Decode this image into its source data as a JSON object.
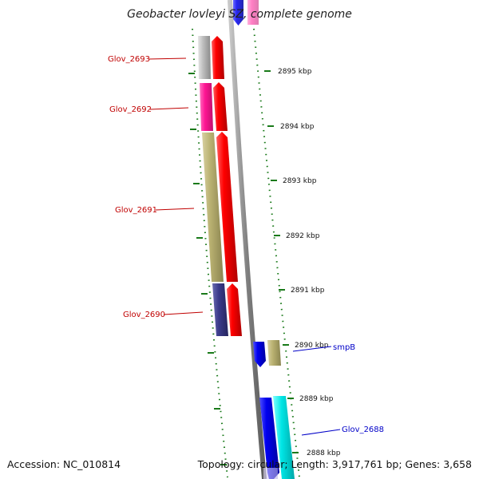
{
  "title": "Geobacter lovleyi SZ, complete genome",
  "footer": {
    "accession": "Accession: NC_010814",
    "topology": "Topology: circular; Length: 3,917,761 bp; Genes: 3,658"
  },
  "ticks": [
    {
      "label": "2895 kbp"
    },
    {
      "label": "2894 kbp"
    },
    {
      "label": "2893 kbp"
    },
    {
      "label": "2892 kbp"
    },
    {
      "label": "2891 kbp"
    },
    {
      "label": "2890 kbp"
    },
    {
      "label": "2889 kbp"
    },
    {
      "label": "2888 kbp"
    }
  ],
  "genes": [
    {
      "name": "Glov_2693",
      "label_color": "red"
    },
    {
      "name": "Glov_2692",
      "label_color": "red"
    },
    {
      "name": "Glov_2691",
      "label_color": "red"
    },
    {
      "name": "Glov_2690",
      "label_color": "red"
    },
    {
      "name": "smpB",
      "label_color": "blue"
    },
    {
      "name": "Glov_2688",
      "label_color": "blue"
    }
  ],
  "colors": {
    "backbone": "#808080",
    "tick_dots": "#1a7a1a",
    "gene_red": "#ff0000",
    "gene_blue": "#0000ee",
    "gene_cyan": "#00e5e5",
    "gene_pink": "#ff1493",
    "gene_gray": "#bdbdbd",
    "gene_khaki": "#b8b070",
    "gene_navy": "#3a3a8a",
    "label_red": "#c00000",
    "label_blue": "#0000c8"
  }
}
